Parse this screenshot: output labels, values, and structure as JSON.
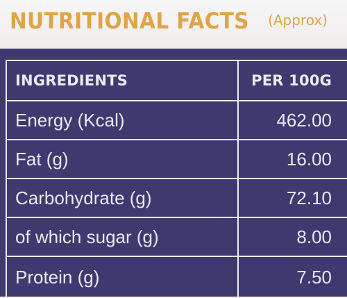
{
  "label": {
    "title": "NUTRITIONAL FACTS",
    "subtitle": "(Approx)",
    "columns": {
      "ingredient": "INGREDIENTS",
      "amount": "PER 100G"
    },
    "rows": [
      {
        "name": "Energy (Kcal)",
        "value": "462.00"
      },
      {
        "name": "Fat (g)",
        "value": "16.00"
      },
      {
        "name": "Carbohydrate (g)",
        "value": "72.10"
      },
      {
        "name": "of which sugar (g)",
        "value": "8.00"
      },
      {
        "name": "Protein (g)",
        "value": "7.50"
      }
    ],
    "colors": {
      "accent": "#e0a447",
      "panel": "#3e3a6f",
      "text": "#ece9f3"
    }
  }
}
